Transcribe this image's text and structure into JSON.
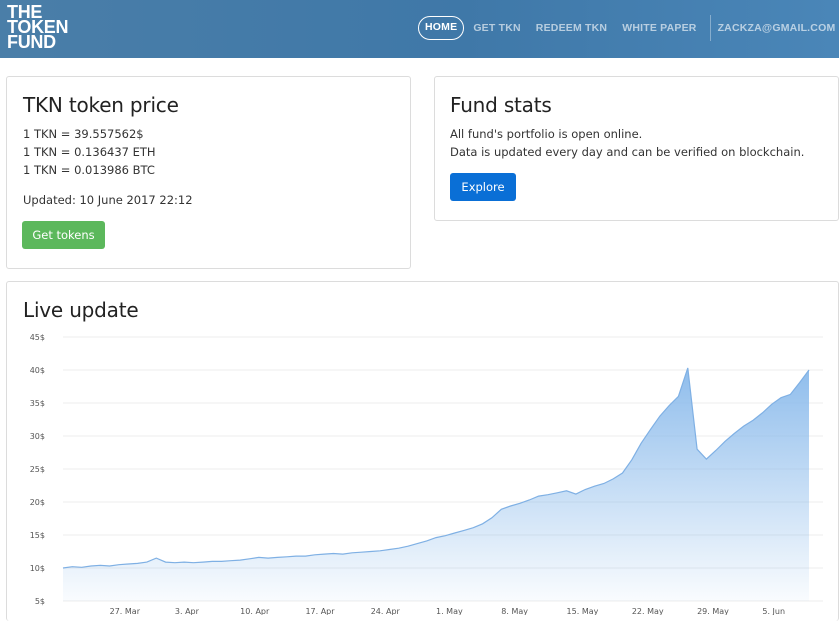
{
  "brand": {
    "logo_lines": [
      "THE",
      "TOKEN",
      "FUND"
    ]
  },
  "nav": {
    "items": [
      {
        "label": "HOME",
        "active": true
      },
      {
        "label": "GET TKN",
        "active": false
      },
      {
        "label": "REDEEM TKN",
        "active": false
      },
      {
        "label": "WHITE PAPER",
        "active": false
      }
    ],
    "user": "ZACKZA@GMAIL.COM"
  },
  "price_card": {
    "title": "TKN token price",
    "lines": [
      "1 TKN = 39.557562$",
      "1 TKN = 0.136437 ETH",
      "1 TKN = 0.013986 BTC"
    ],
    "updated": "Updated: 10 June 2017 22:12",
    "button": "Get tokens"
  },
  "stats_card": {
    "title": "Fund stats",
    "lines": [
      "All fund's portfolio is open online.",
      "Data is updated every day and can be verified on blockchain."
    ],
    "button": "Explore"
  },
  "live_card": {
    "title": "Live update"
  },
  "colors": {
    "nav": "#4a7ea8",
    "green": "#5cb85c",
    "blue": "#0a6fd6",
    "area": "#8fbdec"
  },
  "chart_data": {
    "type": "area",
    "title": "Live update",
    "ylim": [
      5,
      45
    ],
    "y_ticks": [
      "45$",
      "40$",
      "35$",
      "30$",
      "25$",
      "20$",
      "15$",
      "10$",
      "5$"
    ],
    "x_ticks": [
      "27. Mar",
      "3. Apr",
      "10. Apr",
      "17. Apr",
      "24. Apr",
      "1. May",
      "8. May",
      "15. May",
      "22. May",
      "29. May",
      "5. Jun"
    ],
    "grid": true,
    "series": [
      {
        "x": [
          "2017-03-22",
          "2017-03-23",
          "2017-03-24",
          "2017-03-25",
          "2017-03-26",
          "2017-03-27",
          "2017-03-28",
          "2017-03-29",
          "2017-03-30",
          "2017-03-31",
          "2017-04-01",
          "2017-04-02",
          "2017-04-03",
          "2017-04-04",
          "2017-04-05",
          "2017-04-06",
          "2017-04-07",
          "2017-04-08",
          "2017-04-09",
          "2017-04-10",
          "2017-04-11",
          "2017-04-12",
          "2017-04-13",
          "2017-04-14",
          "2017-04-15",
          "2017-04-16",
          "2017-04-17",
          "2017-04-18",
          "2017-04-19",
          "2017-04-20",
          "2017-04-21",
          "2017-04-22",
          "2017-04-23",
          "2017-04-24",
          "2017-04-25",
          "2017-04-26",
          "2017-04-27",
          "2017-04-28",
          "2017-04-29",
          "2017-04-30",
          "2017-05-01",
          "2017-05-02",
          "2017-05-03",
          "2017-05-04",
          "2017-05-05",
          "2017-05-06",
          "2017-05-07",
          "2017-05-08",
          "2017-05-09",
          "2017-05-10",
          "2017-05-11",
          "2017-05-12",
          "2017-05-13",
          "2017-05-14",
          "2017-05-15",
          "2017-05-16",
          "2017-05-17",
          "2017-05-18",
          "2017-05-19",
          "2017-05-20",
          "2017-05-21",
          "2017-05-22",
          "2017-05-23",
          "2017-05-24",
          "2017-05-25",
          "2017-05-26",
          "2017-05-27",
          "2017-05-28",
          "2017-05-29",
          "2017-05-30",
          "2017-05-31",
          "2017-06-01",
          "2017-06-02",
          "2017-06-03",
          "2017-06-04",
          "2017-06-05",
          "2017-06-06",
          "2017-06-07",
          "2017-06-08",
          "2017-06-09",
          "2017-06-10"
        ],
        "y": [
          10.0,
          10.2,
          10.1,
          10.3,
          10.4,
          10.3,
          10.5,
          10.6,
          10.7,
          10.9,
          11.5,
          10.9,
          10.8,
          10.9,
          10.8,
          10.9,
          11.0,
          11.0,
          11.1,
          11.2,
          11.4,
          11.6,
          11.5,
          11.6,
          11.7,
          11.8,
          11.8,
          12.0,
          12.1,
          12.2,
          12.1,
          12.3,
          12.4,
          12.5,
          12.6,
          12.8,
          13.0,
          13.3,
          13.7,
          14.1,
          14.6,
          14.9,
          15.3,
          15.7,
          16.1,
          16.7,
          17.6,
          18.9,
          19.4,
          19.8,
          20.3,
          20.9,
          21.1,
          21.4,
          21.7,
          21.2,
          21.9,
          22.4,
          22.8,
          23.5,
          24.4,
          26.4,
          28.9,
          31.0,
          33.0,
          34.6,
          36.0,
          40.3,
          28.0,
          26.5,
          27.8,
          29.2,
          30.4,
          31.5,
          32.4,
          33.5,
          34.8,
          35.8,
          36.3,
          38.1,
          40.0
        ]
      }
    ]
  }
}
